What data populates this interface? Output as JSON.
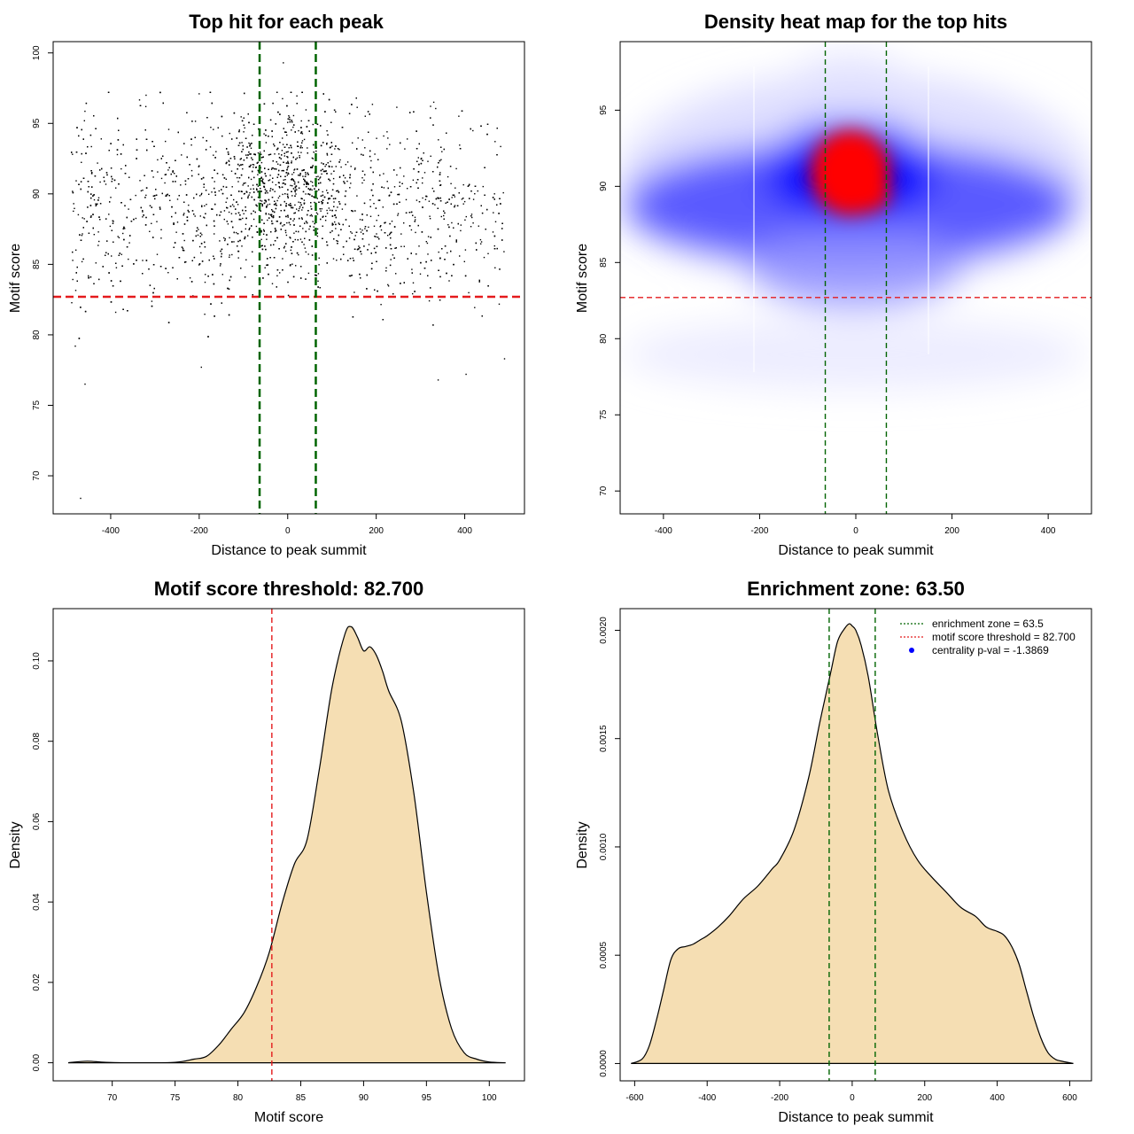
{
  "colors": {
    "threshold_line": "#e41a1c",
    "zone_line": "#006400",
    "density_fill": "#f5deb3",
    "heat_low": "#ffffff",
    "heat_mid": "#0000ff",
    "heat_high": "#ff0000",
    "legend_dot": "#0000ff"
  },
  "chart_data": [
    {
      "type": "scatter",
      "title": "Top hit for each peak",
      "xlabel": "Distance to peak summit",
      "ylabel": "Motif score",
      "xlim": [
        -530,
        535
      ],
      "ylim": [
        67.3,
        100.8
      ],
      "xticks": [
        -400,
        -200,
        0,
        200,
        400
      ],
      "yticks": [
        70,
        75,
        80,
        85,
        90,
        95,
        100
      ],
      "point_count": 3500,
      "x_distribution": "roughly uniform from -490 to 490 with a central concentration",
      "y_center": 89,
      "hlines": [
        82.7
      ],
      "vlines": [
        -63.5,
        63.5
      ],
      "outliers": [
        {
          "x": -468,
          "y": 68.4
        },
        {
          "x": -458,
          "y": 76.5
        },
        {
          "x": -480,
          "y": 79.2
        },
        {
          "x": -10,
          "y": 99.3
        },
        {
          "x": 340,
          "y": 76.8
        },
        {
          "x": 403,
          "y": 77.2
        },
        {
          "x": -195,
          "y": 77.7
        },
        {
          "x": 490,
          "y": 78.3
        },
        {
          "x": -200,
          "y": 97.1
        },
        {
          "x": -320,
          "y": 97.0
        },
        {
          "x": 330,
          "y": 96.5
        }
      ]
    },
    {
      "type": "heatmap",
      "title": "Density heat map for the top hits",
      "xlabel": "Distance to peak summit",
      "ylabel": "Motif score",
      "xlim": [
        -490,
        490
      ],
      "ylim": [
        68.5,
        99.5
      ],
      "xticks": [
        -400,
        -200,
        0,
        200,
        400
      ],
      "yticks": [
        70,
        75,
        80,
        85,
        90,
        95
      ],
      "hlines": [
        82.7
      ],
      "vlines": [
        -63.5,
        63.5
      ],
      "density_peak": {
        "x": 10,
        "y": 89.5
      },
      "white_gridlines_x": [
        -211,
        154
      ]
    },
    {
      "type": "area",
      "title": "Motif score threshold: 82.700",
      "xlabel": "Motif score",
      "ylabel": "Density",
      "xlim": [
        65.3,
        102.8
      ],
      "ylim": [
        -0.0045,
        0.113
      ],
      "xticks": [
        70,
        75,
        80,
        85,
        90,
        95,
        100
      ],
      "yticks": [
        "0.00",
        "0.02",
        "0.04",
        "0.06",
        "0.08",
        "0.10"
      ],
      "vlines": [
        82.7
      ],
      "x": [
        66.5,
        68,
        69.5,
        72,
        75,
        76.5,
        77.5,
        78.5,
        79.5,
        80.5,
        81.5,
        82.5,
        83.5,
        84.5,
        85.5,
        86.5,
        87.5,
        88.5,
        89,
        89.5,
        90,
        90.5,
        91,
        91.5,
        92,
        93,
        94,
        95,
        96,
        97,
        98,
        99,
        100,
        101.3
      ],
      "y": [
        0,
        0.0004,
        0.0001,
        0,
        0.0001,
        0.0009,
        0.0016,
        0.0045,
        0.0085,
        0.0125,
        0.019,
        0.0275,
        0.0395,
        0.0495,
        0.0555,
        0.0735,
        0.0935,
        0.1065,
        0.1085,
        0.106,
        0.1025,
        0.1035,
        0.1015,
        0.0975,
        0.0925,
        0.085,
        0.067,
        0.0425,
        0.0215,
        0.0085,
        0.0025,
        0.0009,
        0.0002,
        0
      ]
    },
    {
      "type": "area",
      "title": "Enrichment zone: 63.50",
      "xlabel": "Distance to peak summit",
      "ylabel": "Density",
      "xlim": [
        -640,
        660
      ],
      "ylim": [
        -8e-05,
        0.0021
      ],
      "xticks": [
        -600,
        -400,
        -200,
        0,
        200,
        400,
        600
      ],
      "yticks": [
        "0.0000",
        "0.0005",
        "0.0010",
        "0.0015",
        "0.0020"
      ],
      "vlines": [
        -63.5,
        63.5
      ],
      "legend": [
        {
          "label": "enrichment zone = 63.5",
          "style": "dotted-green"
        },
        {
          "label": "motif score threshold = 82.700",
          "style": "dotted-red"
        },
        {
          "label": "centrality p-val = -1.3869",
          "style": "blue-dot"
        }
      ],
      "legend_position": "top-right",
      "x": [
        -610,
        -580,
        -560,
        -540,
        -520,
        -500,
        -480,
        -460,
        -440,
        -420,
        -400,
        -370,
        -340,
        -300,
        -260,
        -220,
        -200,
        -160,
        -120,
        -90,
        -60,
        -40,
        -20,
        -8,
        0,
        10,
        25,
        45,
        70,
        100,
        140,
        180,
        220,
        260,
        300,
        340,
        370,
        400,
        420,
        440,
        460,
        480,
        500,
        520,
        540,
        560,
        580,
        610
      ],
      "y": [
        0,
        2e-05,
        8e-05,
        0.0002,
        0.00034,
        0.00048,
        0.00053,
        0.00054,
        0.00055,
        0.00057,
        0.00059,
        0.00063,
        0.00068,
        0.00076,
        0.00082,
        0.0009,
        0.00094,
        0.00108,
        0.00132,
        0.00157,
        0.0018,
        0.00195,
        0.00201,
        0.00203,
        0.00202,
        0.002,
        0.00193,
        0.00178,
        0.00152,
        0.00126,
        0.00107,
        0.00094,
        0.00086,
        0.00079,
        0.00072,
        0.00068,
        0.00063,
        0.00061,
        0.00059,
        0.00054,
        0.00046,
        0.00034,
        0.00022,
        0.00012,
        5e-05,
        2e-05,
        1e-05,
        0
      ]
    }
  ]
}
